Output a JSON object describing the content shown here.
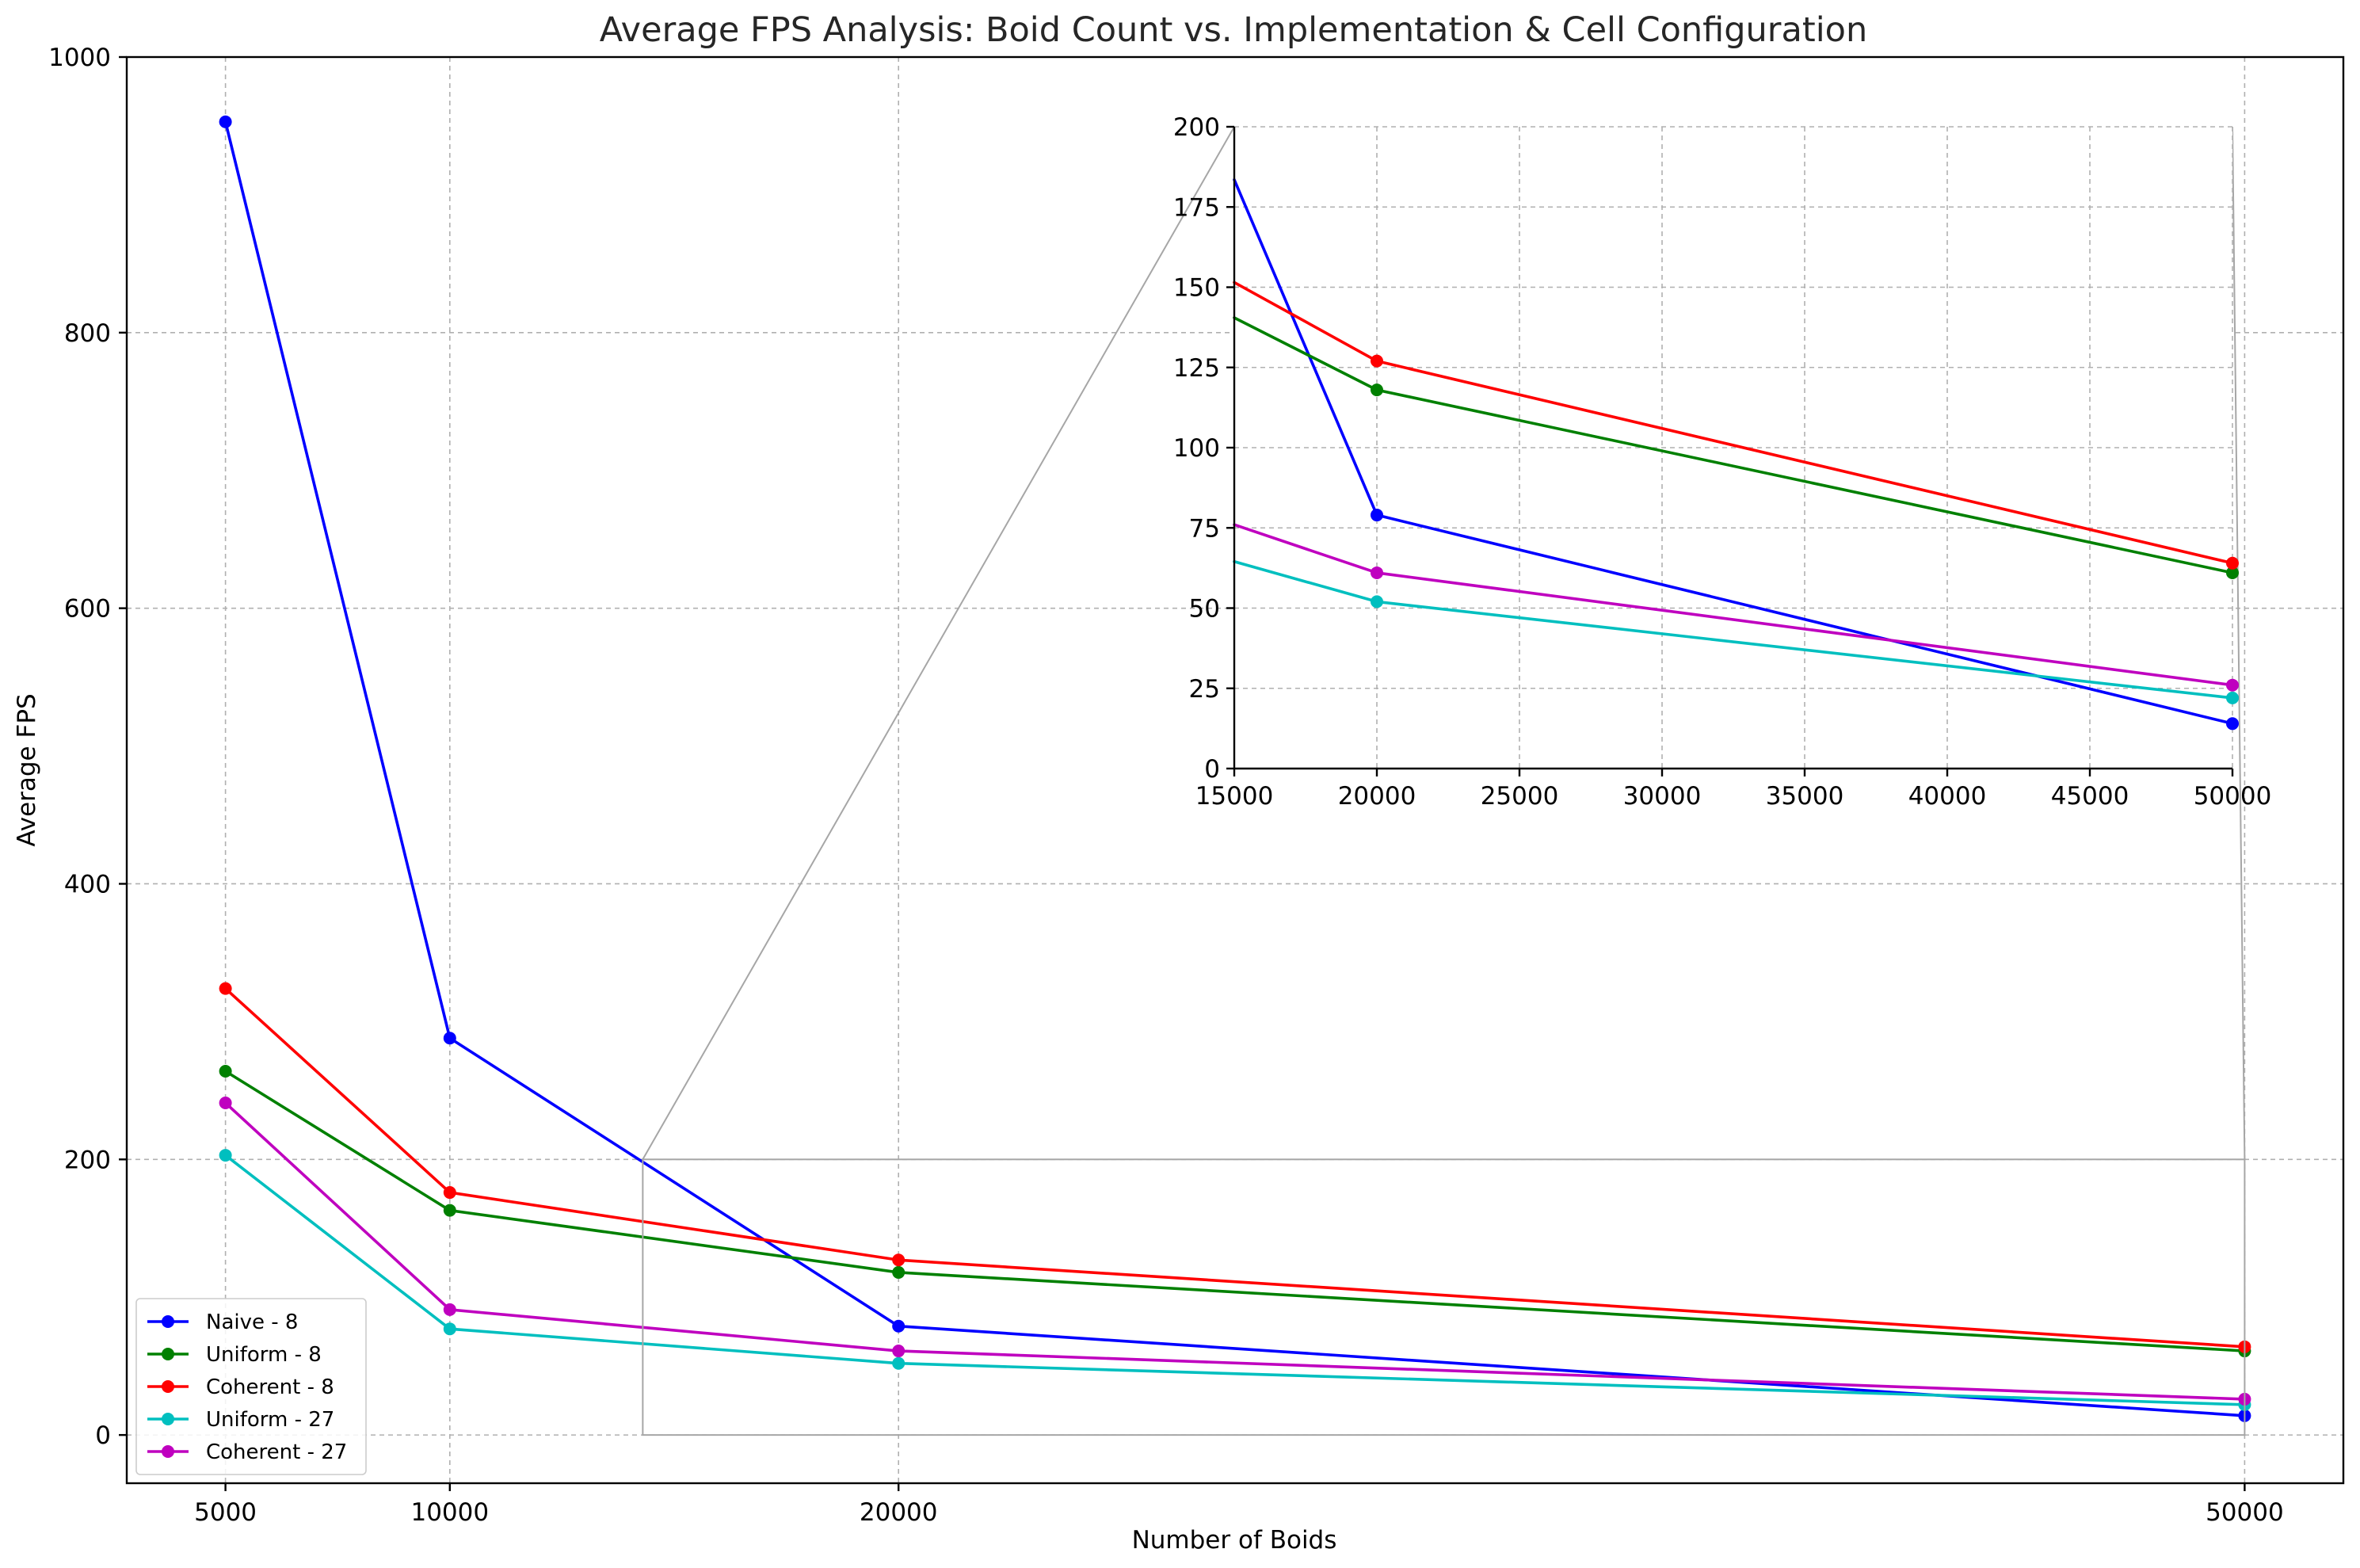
{
  "chart_data": {
    "type": "line",
    "title": "Average FPS Analysis: Boid Count vs. Implementation & Cell Configuration",
    "xlabel": "Number of Boids",
    "ylabel": "Average FPS",
    "x": [
      5000,
      10000,
      20000,
      50000
    ],
    "xticks": [
      5000,
      10000,
      20000,
      50000
    ],
    "xlim": [
      2800,
      52200
    ],
    "ylim": [
      -35,
      1000
    ],
    "yticks": [
      0,
      200,
      400,
      600,
      800,
      1000
    ],
    "grid": true,
    "legend_position": "lower-left",
    "series": [
      {
        "name": "Naive - 8",
        "color": "#0000ff",
        "values": [
          953,
          288,
          79,
          14
        ]
      },
      {
        "name": "Uniform - 8",
        "color": "#008000",
        "values": [
          264,
          163,
          118,
          61
        ]
      },
      {
        "name": "Coherent - 8",
        "color": "#ff0000",
        "values": [
          324,
          176,
          127,
          64
        ]
      },
      {
        "name": "Uniform - 27",
        "color": "#00bfbf",
        "values": [
          203,
          77,
          52,
          22
        ]
      },
      {
        "name": "Coherent - 27",
        "color": "#bf00bf",
        "values": [
          241,
          91,
          61,
          26
        ]
      }
    ],
    "inset": {
      "xlim": [
        15000,
        50000
      ],
      "ylim": [
        0,
        200
      ],
      "xticks": [
        15000,
        20000,
        25000,
        30000,
        35000,
        40000,
        45000,
        50000
      ],
      "yticks": [
        0,
        25,
        50,
        75,
        100,
        125,
        150,
        175,
        200
      ],
      "zoom_region": {
        "x": [
          14300,
          50000
        ],
        "y": [
          0,
          200
        ]
      }
    }
  }
}
